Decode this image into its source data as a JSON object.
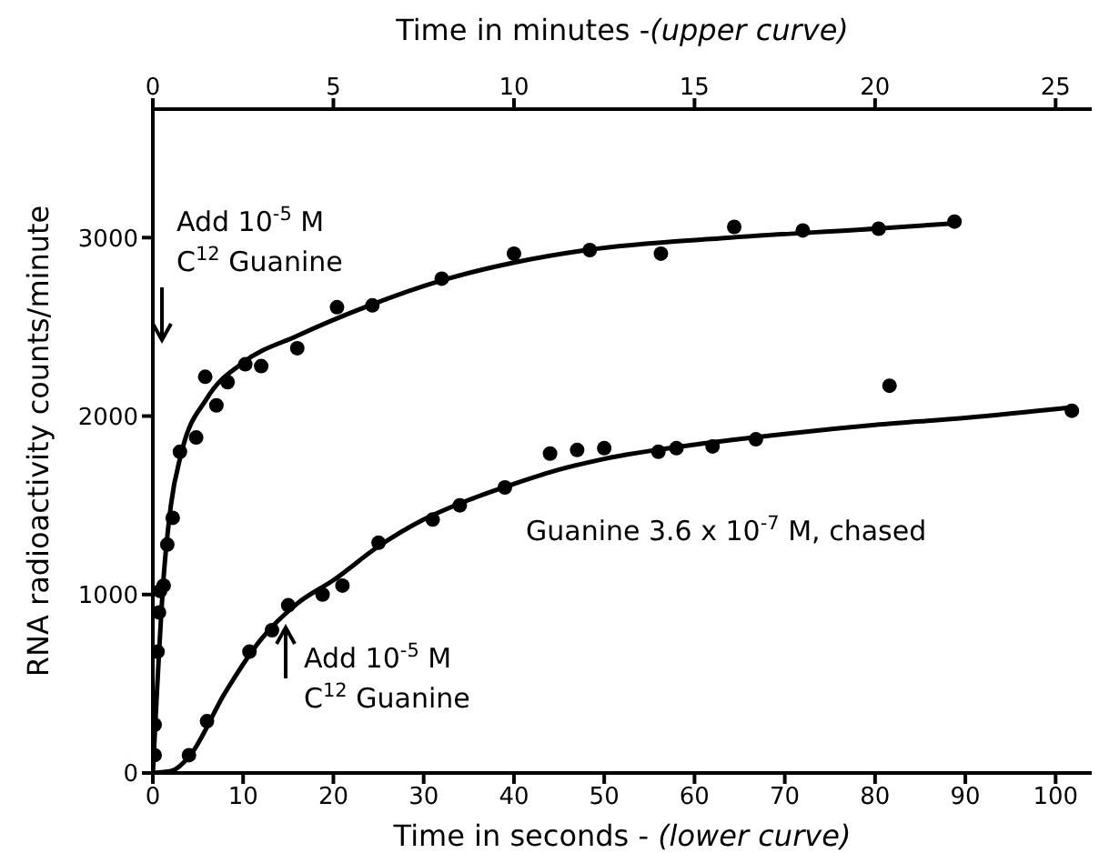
{
  "chart_data": {
    "type": "scatter",
    "xlabel": "Time in seconds - (lower curve)",
    "x2label": "Time in minutes -(upper curve)",
    "ylabel": "RNA radioactivity counts/minute",
    "xlim": [
      0,
      104
    ],
    "xticks": [
      0,
      10,
      20,
      30,
      40,
      50,
      60,
      70,
      80,
      90,
      100
    ],
    "x2lim": [
      0,
      26
    ],
    "x2ticks": [
      0,
      5,
      10,
      15,
      20,
      25
    ],
    "ylim": [
      0,
      3720
    ],
    "yticks": [
      0,
      1000,
      2000,
      3000
    ],
    "grid": false,
    "legend": false,
    "marker": "circle",
    "annotations": [
      "Add 10$^{-5}$ M\nC$^{12}$ Guanine",
      "Add 10$^{-5}$ M\nC$^{12}$ Guanine",
      "Guanine 3.6 x 10$^{-7}$ M, chased"
    ],
    "series": [
      {
        "axis": "x2",
        "color": "#000000",
        "x": [
          0.05,
          0.05,
          0.13,
          0.17,
          0.2,
          0.3,
          0.4,
          0.55,
          0.75,
          1.2,
          1.45,
          1.76,
          2.07,
          2.56,
          3.0,
          4.0,
          5.1,
          6.08,
          8.0,
          10.0,
          12.1,
          14.07,
          16.1,
          18.0,
          20.1,
          22.2
        ],
        "values": [
          100,
          270,
          680,
          900,
          1020,
          1050,
          1280,
          1430,
          1800,
          1880,
          2220,
          2060,
          2190,
          2290,
          2280,
          2380,
          2610,
          2620,
          2770,
          2910,
          2930,
          2910,
          3060,
          3040,
          3050,
          3090
        ]
      },
      {
        "type": "line",
        "axis": "x2",
        "color": "#000000",
        "marker": "none",
        "x": [
          0,
          0.1,
          0.3,
          0.5,
          0.8,
          1.5,
          2.5,
          4,
          6,
          8,
          10,
          12,
          16,
          20,
          22.2
        ],
        "values": [
          0,
          400,
          1100,
          1500,
          1800,
          2100,
          2300,
          2450,
          2620,
          2760,
          2860,
          2930,
          3000,
          3050,
          3080
        ]
      },
      {
        "color": "#000000",
        "x": [
          4,
          6,
          10.7,
          13.2,
          15,
          18.8,
          21,
          25,
          31,
          34,
          39,
          44,
          47,
          50,
          56,
          58,
          62,
          66.8,
          81.6,
          101.8
        ],
        "values": [
          100,
          290,
          680,
          800,
          940,
          1000,
          1050,
          1290,
          1420,
          1500,
          1600,
          1790,
          1810,
          1820,
          1800,
          1820,
          1830,
          1870,
          2170,
          2030
        ]
      },
      {
        "type": "line",
        "color": "#000000",
        "marker": "none",
        "x": [
          0,
          2,
          4,
          8,
          12,
          16,
          20,
          25,
          30,
          35,
          40,
          45,
          50,
          60,
          70,
          80,
          90,
          102
        ],
        "values": [
          0,
          10,
          90,
          450,
          750,
          950,
          1080,
          1270,
          1420,
          1530,
          1620,
          1700,
          1760,
          1840,
          1900,
          1950,
          1990,
          2050
        ]
      }
    ]
  }
}
